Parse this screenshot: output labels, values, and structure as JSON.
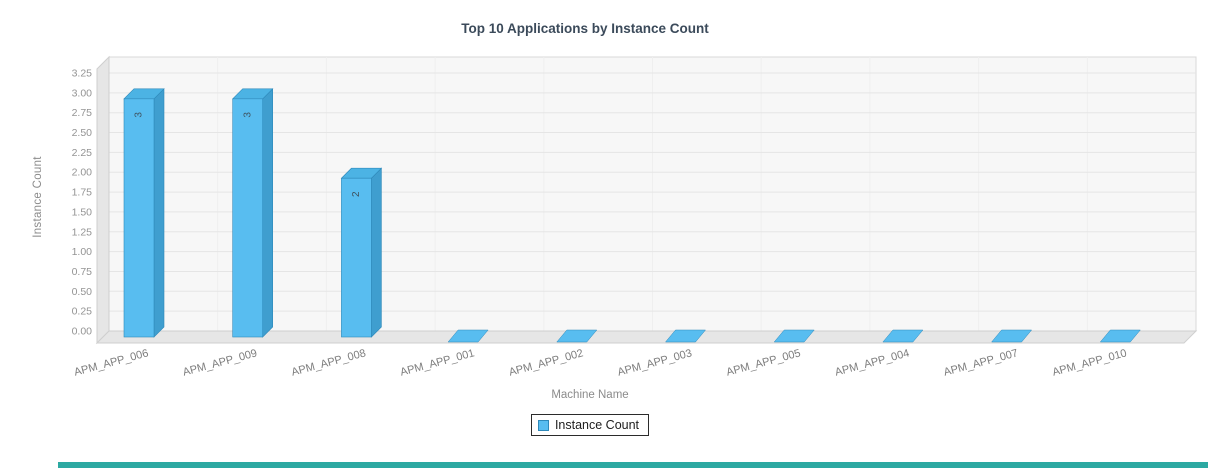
{
  "page": {
    "background": "#ffffff",
    "bottom_bar_color": "#2ca9a2"
  },
  "chart_data": {
    "type": "bar",
    "title": "Top 10 Applications by Instance Count",
    "xlabel": "Machine Name",
    "ylabel": "Instance Count",
    "categories": [
      "APM_APP_006",
      "APM_APP_009",
      "APM_APP_008",
      "APM_APP_001",
      "APM_APP_002",
      "APM_APP_003",
      "APM_APP_005",
      "APM_APP_004",
      "APM_APP_007",
      "APM_APP_010"
    ],
    "values": [
      3,
      3,
      2,
      0,
      0,
      0,
      0,
      0,
      0,
      0
    ],
    "ylim": [
      0,
      3.25
    ],
    "ytick_step": 0.25,
    "yticks": [
      "0.00",
      "0.25",
      "0.50",
      "0.75",
      "1.00",
      "1.25",
      "1.50",
      "1.75",
      "2.00",
      "2.25",
      "2.50",
      "2.75",
      "3.00",
      "3.25"
    ],
    "grid": true,
    "style3d": true,
    "bar_color": "#58bdf0",
    "bar_side_color": "#3f9ecf",
    "bar_top_color": "#4cb3e4",
    "bar_edge_color": "#2e89ba",
    "value_label_color": "#3f5360",
    "tick_label_color": "#949494",
    "category_label_color": "#7d7d7d",
    "legend": {
      "position": "bottom",
      "entries": [
        {
          "label": "Instance Count",
          "color": "#58bdf0"
        }
      ]
    }
  }
}
